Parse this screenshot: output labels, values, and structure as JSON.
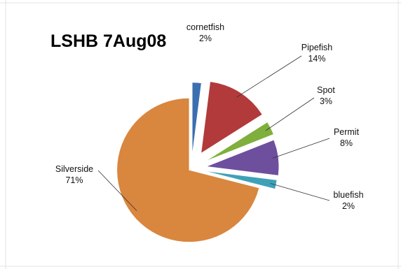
{
  "chart_data": {
    "type": "pie",
    "title": "LSHB 7Aug08",
    "slices": [
      {
        "name": "cornetfish",
        "value": 2,
        "label": "2%",
        "color": "#3B6FB0"
      },
      {
        "name": "Pipefish",
        "value": 14,
        "label": "14%",
        "color": "#B23A3A"
      },
      {
        "name": "Spot",
        "value": 3,
        "label": "3%",
        "color": "#7FAF3C"
      },
      {
        "name": "Permit",
        "value": 8,
        "label": "8%",
        "color": "#6E4F9E"
      },
      {
        "name": "bluefish",
        "value": 2,
        "label": "2%",
        "color": "#3FA1B8"
      },
      {
        "name": "Silverside",
        "value": 71,
        "label": "71%",
        "color": "#D9863E"
      }
    ],
    "exploded": true,
    "legend": "none"
  }
}
